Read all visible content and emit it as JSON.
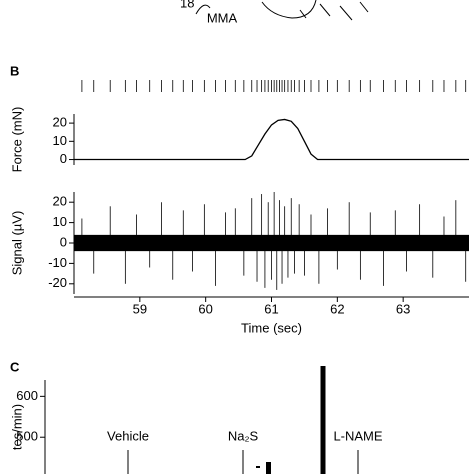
{
  "panels": {
    "top_number": "18",
    "top_label": "MMA",
    "b": "B",
    "c": "C"
  },
  "chart_data": [
    {
      "type": "raster",
      "xlim": [
        58.0,
        64.0
      ],
      "x": [
        58.12,
        58.3,
        58.55,
        58.78,
        58.95,
        59.15,
        59.33,
        59.5,
        59.66,
        59.8,
        59.98,
        60.15,
        60.3,
        60.45,
        60.58,
        60.7,
        60.78,
        60.85,
        60.9,
        60.95,
        61.0,
        61.04,
        61.08,
        61.12,
        61.16,
        61.2,
        61.25,
        61.3,
        61.35,
        61.42,
        61.5,
        61.6,
        61.72,
        61.85,
        62.0,
        62.18,
        62.35,
        62.5,
        62.7,
        62.88,
        63.05,
        63.25,
        63.45,
        63.62,
        63.8,
        63.95
      ]
    },
    {
      "type": "line",
      "ylabel": "Force (mN)",
      "xlim": [
        58.0,
        64.0
      ],
      "ylim": [
        -3,
        25
      ],
      "yticks": [
        0,
        10,
        20
      ],
      "color": "#000000",
      "x": [
        58.0,
        60.6,
        60.7,
        60.8,
        60.9,
        61.0,
        61.1,
        61.2,
        61.3,
        61.4,
        61.5,
        61.6,
        61.7,
        64.0
      ],
      "values": [
        0,
        0,
        2,
        8,
        14,
        19,
        21.5,
        22,
        21,
        17,
        10,
        3,
        0,
        0
      ]
    },
    {
      "type": "spikes",
      "ylabel": "Signal (µV)",
      "xlabel": "Time (sec)",
      "xlim": [
        58.0,
        64.0
      ],
      "ylim": [
        -25,
        25
      ],
      "yticks": [
        -20,
        -10,
        0,
        10,
        20
      ],
      "xticks": [
        59,
        60,
        61,
        62,
        63
      ],
      "color": "#000000",
      "band": {
        "x": [
          58.0,
          64.0
        ],
        "upper": [
          4,
          4
        ],
        "lower": [
          -4,
          -4
        ]
      },
      "x": [
        58.12,
        58.3,
        58.55,
        58.78,
        58.95,
        59.15,
        59.33,
        59.5,
        59.66,
        59.8,
        59.98,
        60.15,
        60.3,
        60.45,
        60.58,
        60.7,
        60.78,
        60.85,
        60.9,
        60.95,
        61.0,
        61.04,
        61.08,
        61.12,
        61.16,
        61.2,
        61.25,
        61.3,
        61.35,
        61.42,
        61.5,
        61.6,
        61.72,
        61.85,
        62.0,
        62.18,
        62.35,
        62.5,
        62.7,
        62.88,
        63.05,
        63.25,
        63.45,
        63.62,
        63.8,
        63.95
      ],
      "values": [
        12,
        -15,
        18,
        -20,
        14,
        -12,
        20,
        -18,
        16,
        -14,
        19,
        -21,
        15,
        17,
        -16,
        22,
        -19,
        24,
        -22,
        20,
        -18,
        25,
        -23,
        21,
        -20,
        18,
        -17,
        22,
        -15,
        19,
        -16,
        14,
        -20,
        17,
        -13,
        20,
        -18,
        15,
        -21,
        16,
        -14,
        19,
        -17,
        13,
        21,
        -19
      ]
    },
    {
      "type": "annotated",
      "ylabel": "tes/min)",
      "ylim": [
        410,
        640
      ],
      "yticks": [
        500,
        600
      ],
      "annotations": [
        "Vehicle",
        "Na₂S",
        "L-NAME"
      ]
    }
  ]
}
